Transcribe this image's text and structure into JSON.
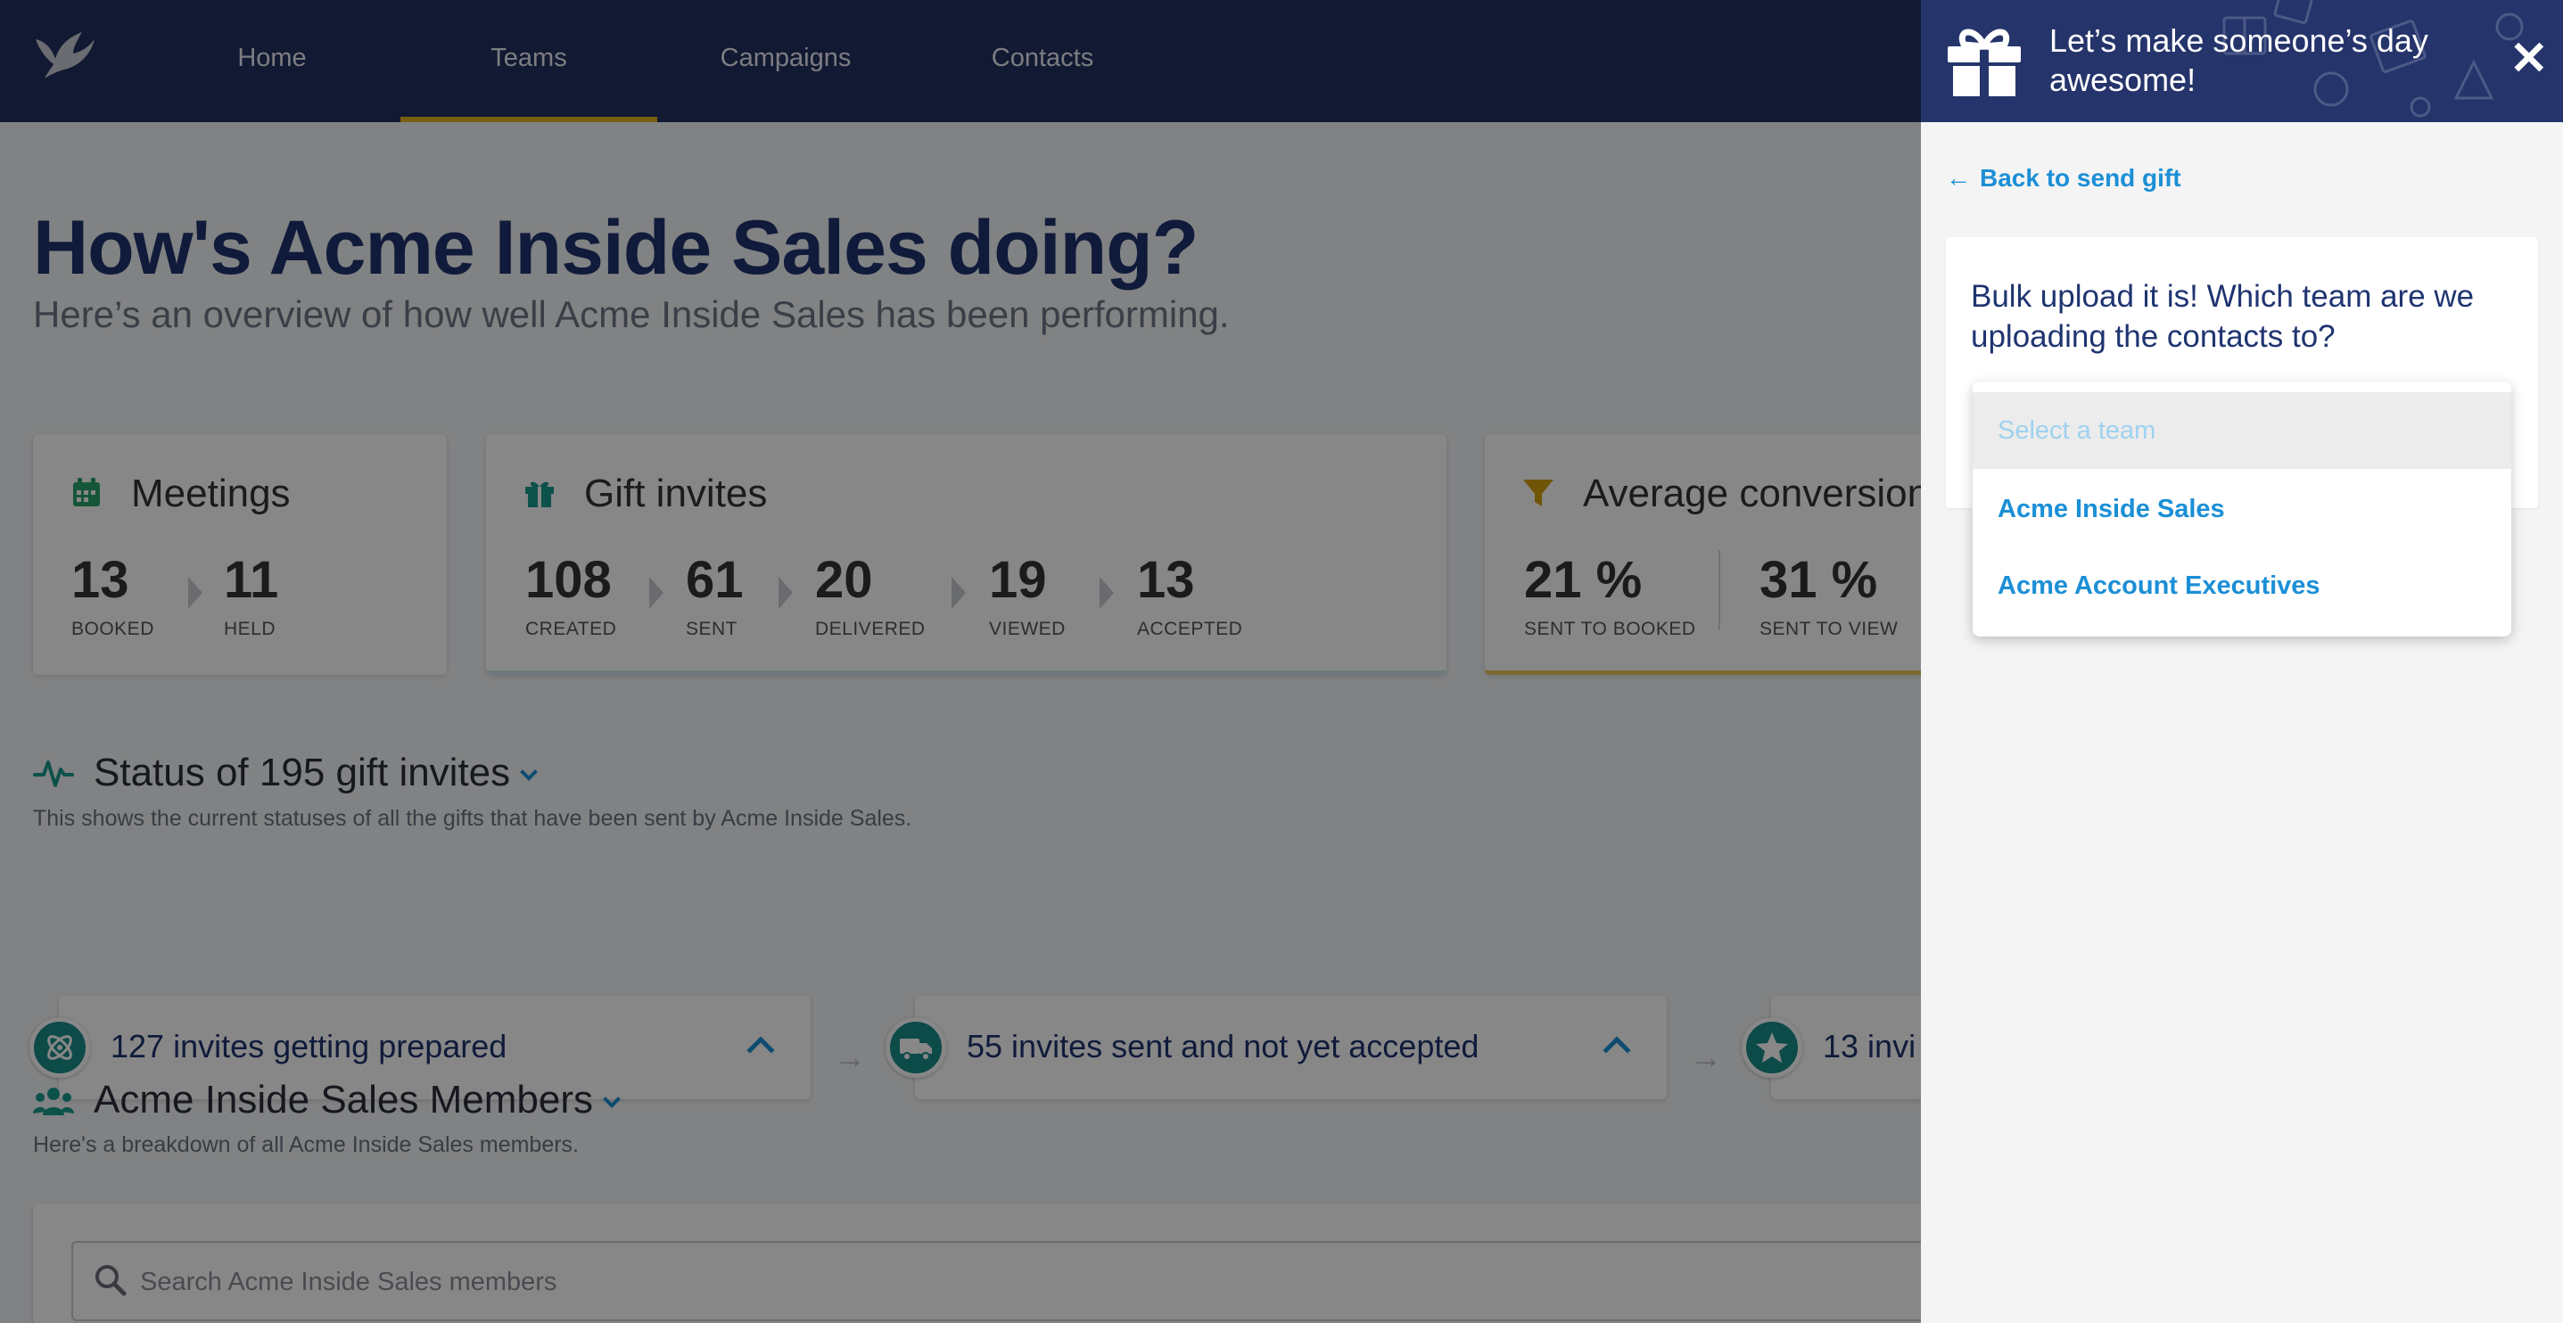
{
  "nav": {
    "items": [
      "Home",
      "Teams",
      "Campaigns",
      "Contacts"
    ],
    "active": "Teams"
  },
  "page": {
    "title": "How's Acme Inside Sales doing?",
    "subtitle": "Here’s an overview of how well Acme Inside Sales has been performing."
  },
  "meetings": {
    "title": "Meetings",
    "stats": [
      {
        "value": "13",
        "label": "BOOKED"
      },
      {
        "value": "11",
        "label": "HELD"
      }
    ]
  },
  "gift_invites": {
    "title": "Gift invites",
    "stats": [
      {
        "value": "108",
        "label": "CREATED"
      },
      {
        "value": "61",
        "label": "SENT"
      },
      {
        "value": "20",
        "label": "DELIVERED"
      },
      {
        "value": "19",
        "label": "VIEWED"
      },
      {
        "value": "13",
        "label": "ACCEPTED"
      }
    ]
  },
  "conversion": {
    "title": "Average conversion",
    "stats": [
      {
        "value": "21 %",
        "label": "SENT TO BOOKED"
      },
      {
        "value": "31 %",
        "label": "SENT TO VIEW"
      }
    ]
  },
  "status_section": {
    "title": "Status of 195 gift invites",
    "subtitle": "This shows the current statuses of all the gifts that have been sent by Acme Inside Sales.",
    "cards": [
      "127 invites getting prepared",
      "55 invites sent and not yet accepted",
      "13 invi"
    ]
  },
  "members_section": {
    "title": "Acme Inside Sales Members",
    "subtitle": "Here's a breakdown of all Acme Inside Sales members.",
    "search_placeholder": "Search Acme Inside Sales members"
  },
  "panel": {
    "title": "Let’s make someone’s day awesome!",
    "back_label": "Back to send gift",
    "question": "Bulk upload it is! Which team are we uploading the contacts to?",
    "select": {
      "placeholder": "Select a team",
      "options": [
        "Acme Inside Sales",
        "Acme Account Executives"
      ]
    }
  },
  "colors": {
    "nav_bg": "#22305f",
    "accent_underline": "#e6b422",
    "link_blue": "#1b8fd6",
    "title_navy": "#1f3470",
    "teal": "#1a8f8a"
  }
}
